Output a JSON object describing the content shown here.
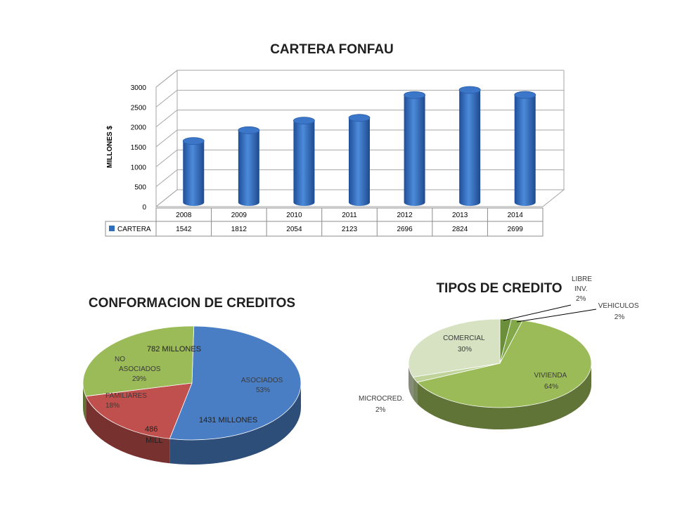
{
  "chart_data": [
    {
      "type": "bar",
      "title": "CARTERA FONFAU",
      "ylabel": "MILLONES $",
      "xlabel": "",
      "ylim": [
        0,
        3000
      ],
      "yticks": [
        "0",
        "500",
        "1000",
        "1500",
        "2000",
        "2500",
        "3000"
      ],
      "categories": [
        "2008",
        "2009",
        "2010",
        "2011",
        "2012",
        "2013",
        "2014"
      ],
      "series": [
        {
          "name": "CARTERA",
          "values": [
            1542,
            1812,
            2054,
            2123,
            2696,
            2824,
            2699
          ]
        }
      ],
      "grid": true,
      "data_table": true,
      "color": "#2E6DBE"
    },
    {
      "type": "pie",
      "title": "CONFORMACION DE CREDITOS",
      "slices": [
        {
          "label": "ASOCIADOS",
          "percent": "53%",
          "value": 53,
          "amount": "1431 MILLONES",
          "color": "#4A7EC4"
        },
        {
          "label": "FAMILIARES",
          "percent": "18%",
          "value": 18,
          "amount": "486 MILL",
          "color": "#C0504D"
        },
        {
          "label": "NO ASOCIADOS",
          "percent": "29%",
          "value": 29,
          "amount": "782 MILLONES",
          "color": "#9BBB59"
        }
      ]
    },
    {
      "type": "pie",
      "title": "TIPOS DE CREDITO",
      "slices": [
        {
          "label": "LIBRE INV.",
          "percent": "2%",
          "value": 2,
          "color": "#6B8E3A"
        },
        {
          "label": "VEHICULOS",
          "percent": "2%",
          "value": 2,
          "color": "#82A84A"
        },
        {
          "label": "VIVIENDA",
          "percent": "64%",
          "value": 64,
          "color": "#9BBB59"
        },
        {
          "label": "MICROCRED.",
          "percent": "2%",
          "value": 2,
          "color": "#BFD39A"
        },
        {
          "label": "COMERCIAL",
          "percent": "30%",
          "value": 30,
          "color": "#D6E2C2"
        }
      ]
    }
  ]
}
